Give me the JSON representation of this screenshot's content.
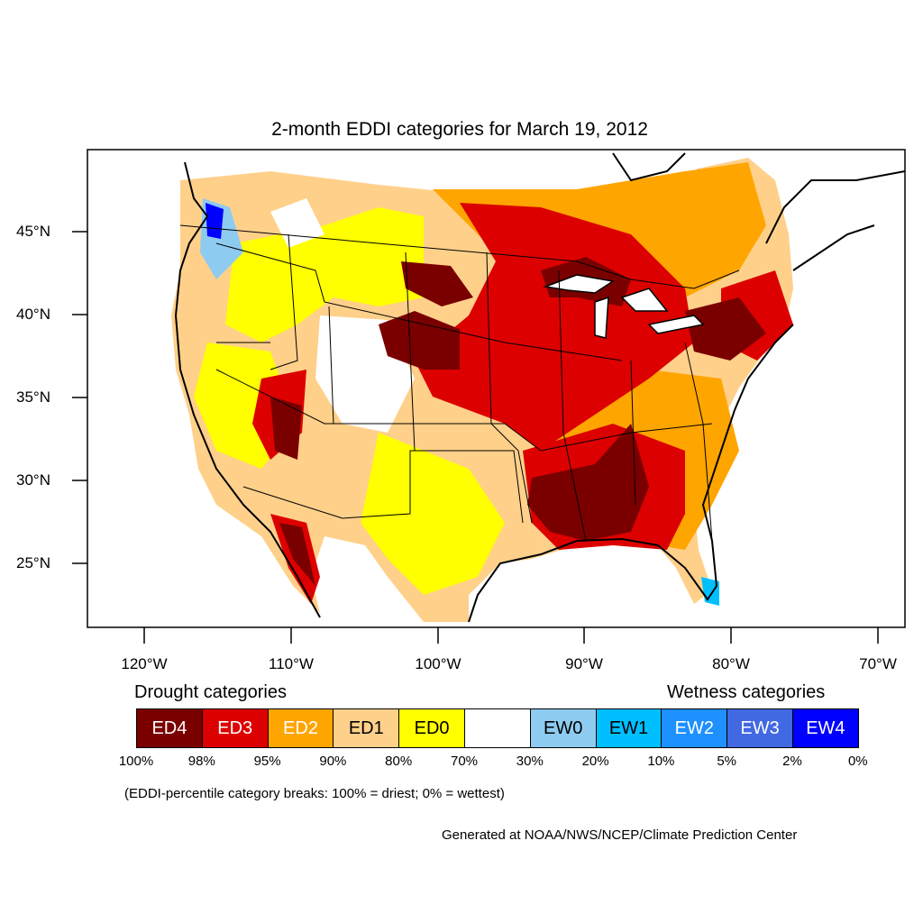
{
  "map": {
    "title": "2-month EDDI categories for March 19, 2012",
    "lat_labels": [
      "45°N",
      "40°N",
      "35°N",
      "30°N",
      "25°N"
    ],
    "lon_labels": [
      "120°W",
      "110°W",
      "100°W",
      "90°W",
      "80°W",
      "70°W"
    ]
  },
  "legend": {
    "drought_heading": "Drought categories",
    "wetness_heading": "Wetness categories",
    "categories": [
      {
        "label": "ED4",
        "color": "#7a0000",
        "text_color": "#ffffff"
      },
      {
        "label": "ED3",
        "color": "#dd0000",
        "text_color": "#ffffff"
      },
      {
        "label": "ED2",
        "color": "#ffa500",
        "text_color": "#ffffff"
      },
      {
        "label": "ED1",
        "color": "#ffd08a",
        "text_color": "#000000"
      },
      {
        "label": "ED0",
        "color": "#ffff00",
        "text_color": "#000000"
      },
      {
        "label": "",
        "color": "#ffffff",
        "text_color": "#000000"
      },
      {
        "label": "EW0",
        "color": "#8ecbf0",
        "text_color": "#000000"
      },
      {
        "label": "EW1",
        "color": "#00bfff",
        "text_color": "#000000"
      },
      {
        "label": "EW2",
        "color": "#1e90ff",
        "text_color": "#ffffff"
      },
      {
        "label": "EW3",
        "color": "#4169e1",
        "text_color": "#ffffff"
      },
      {
        "label": "EW4",
        "color": "#0000ff",
        "text_color": "#ffffff"
      }
    ],
    "breaks": [
      "100%",
      "98%",
      "95%",
      "90%",
      "80%",
      "70%",
      "30%",
      "20%",
      "10%",
      "5%",
      "2%",
      "0%"
    ]
  },
  "note": "(EDDI-percentile category breaks: 100% = driest; 0% = wettest)",
  "credit": "Generated at NOAA/NWS/NCEP/Climate Prediction Center"
}
